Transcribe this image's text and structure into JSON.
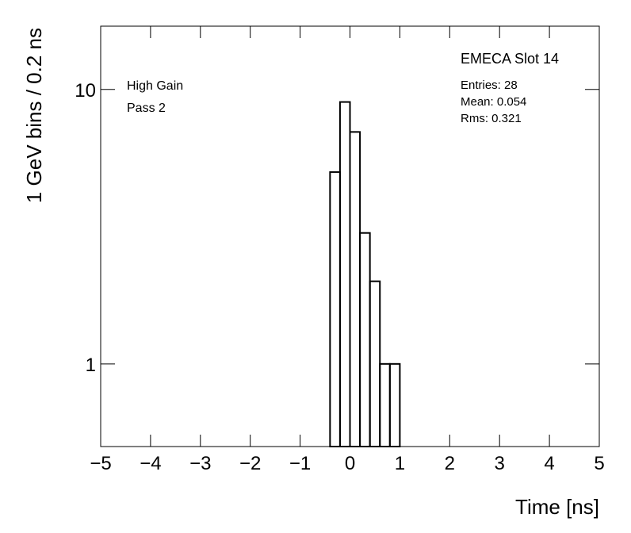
{
  "chart_data": {
    "type": "histogram",
    "x_label": "Time [ns]",
    "y_label": "1 GeV bins / 0.2 ns",
    "bins": [
      -0.4,
      -0.2,
      0,
      0.2,
      0.4,
      0.6,
      0.8,
      1.0
    ],
    "counts": [
      5,
      9,
      7,
      3,
      2,
      1,
      1
    ],
    "color": "#000000",
    "xlim": [
      -5,
      5
    ],
    "xticks": [
      {
        "value": -5,
        "label": "−5"
      },
      {
        "value": -4,
        "label": "−4"
      },
      {
        "value": -3,
        "label": "−3"
      },
      {
        "value": -2,
        "label": "−2"
      },
      {
        "value": -1,
        "label": "−1"
      },
      0,
      1,
      2,
      3,
      4,
      5
    ],
    "ylim": [
      0.5,
      17
    ],
    "yticks": [
      1,
      10
    ],
    "log_y": true,
    "annotations": [
      "High Gain",
      "Pass 2"
    ],
    "stats": {
      "title": "EMECA Slot 14",
      "lines": [
        "Entries: 28",
        "Mean: 0.054",
        "Rms: 0.321"
      ]
    }
  }
}
